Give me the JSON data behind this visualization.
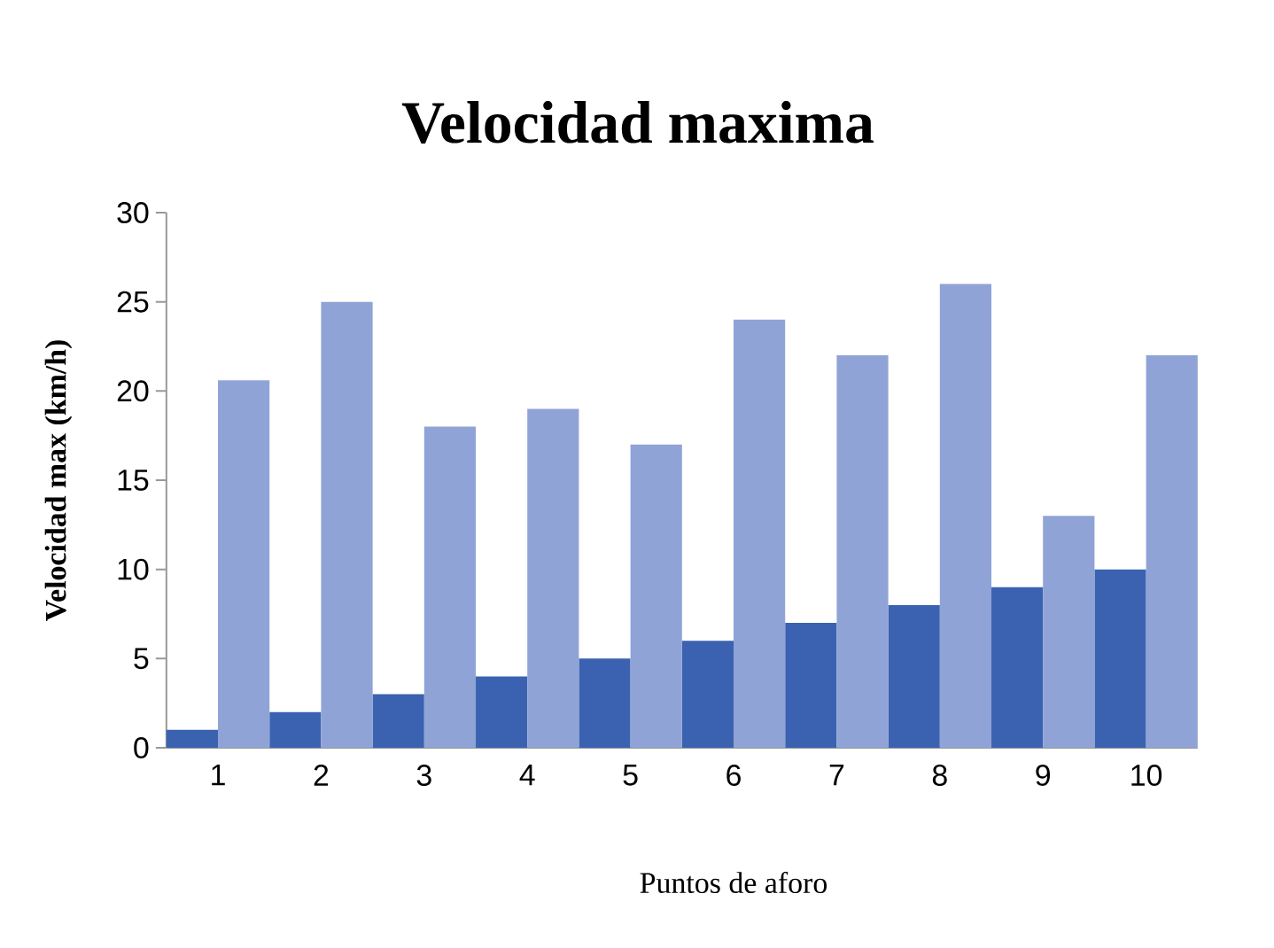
{
  "chart_data": {
    "type": "bar",
    "title": "Velocidad maxima",
    "xlabel": "Puntos de aforo",
    "ylabel": "Velocidad max (km/h)",
    "categories": [
      "1",
      "2",
      "3",
      "4",
      "5",
      "6",
      "7",
      "8",
      "9",
      "10"
    ],
    "series": [
      {
        "color": "#3a62b0",
        "values": [
          1,
          2,
          3,
          4,
          5,
          6,
          7,
          8,
          9,
          10
        ]
      },
      {
        "color": "#8fa3d6",
        "values": [
          20.6,
          25,
          18,
          19,
          17,
          24,
          22,
          26,
          13,
          22
        ]
      }
    ],
    "ylim": [
      0,
      30
    ],
    "yticks": [
      0,
      5,
      10,
      15,
      20,
      25,
      30
    ],
    "grid": false
  }
}
